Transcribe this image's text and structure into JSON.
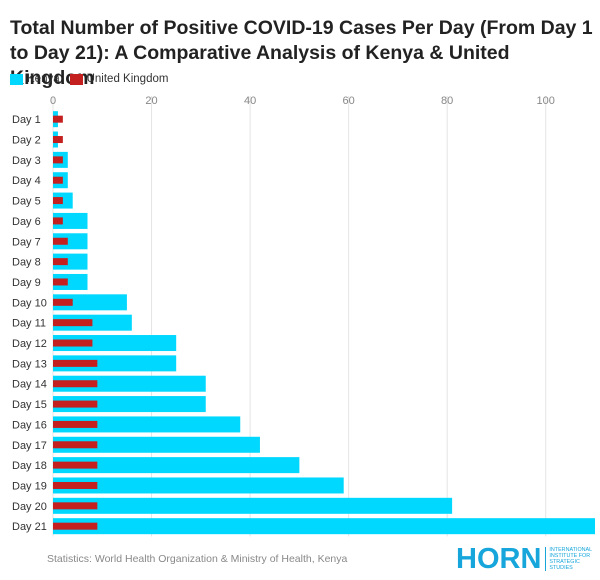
{
  "header": {
    "title": "Total Number of Positive COVID-19 Cases Per Day (From Day 1 to Day 21): A Comparative Analysis of Kenya & United Kingdom"
  },
  "footer": {
    "source": "Statistics: World Health Organization & Ministry of Health, Kenya",
    "logo_word": "HORN",
    "logo_tagline": "International Institute for Strategic Studies"
  },
  "colors": {
    "kenya": "#00d8ff",
    "uk": "#c42020",
    "grid": "#e4e4e4",
    "text": "#333333"
  },
  "chart_data": {
    "type": "bar",
    "orientation": "horizontal",
    "categories": [
      "Day 1",
      "Day 2",
      "Day 3",
      "Day 4",
      "Day 5",
      "Day 6",
      "Day 7",
      "Day 8",
      "Day 9",
      "Day 10",
      "Day 11",
      "Day 12",
      "Day 13",
      "Day 14",
      "Day 15",
      "Day 16",
      "Day 17",
      "Day 18",
      "Day 19",
      "Day 20",
      "Day 21"
    ],
    "series": [
      {
        "name": "Kenya",
        "values": [
          1,
          1,
          3,
          3,
          4,
          7,
          7,
          7,
          7,
          15,
          16,
          25,
          25,
          31,
          31,
          38,
          42,
          50,
          59,
          81,
          110
        ]
      },
      {
        "name": "United Kingdom",
        "values": [
          2,
          2,
          2,
          2,
          2,
          2,
          3,
          3,
          3,
          4,
          8,
          8,
          9,
          9,
          9,
          9,
          9,
          9,
          9,
          9,
          9
        ]
      }
    ],
    "xticks": [
      0,
      20,
      40,
      60,
      80,
      100
    ],
    "xlim": [
      0,
      110
    ],
    "grid": true,
    "legend": "top-left",
    "title": "Total Number of Positive COVID-19 Cases Per Day (From Day 1 to Day 21): A Comparative Analysis of Kenya & United Kingdom",
    "xlabel": "",
    "ylabel": ""
  }
}
